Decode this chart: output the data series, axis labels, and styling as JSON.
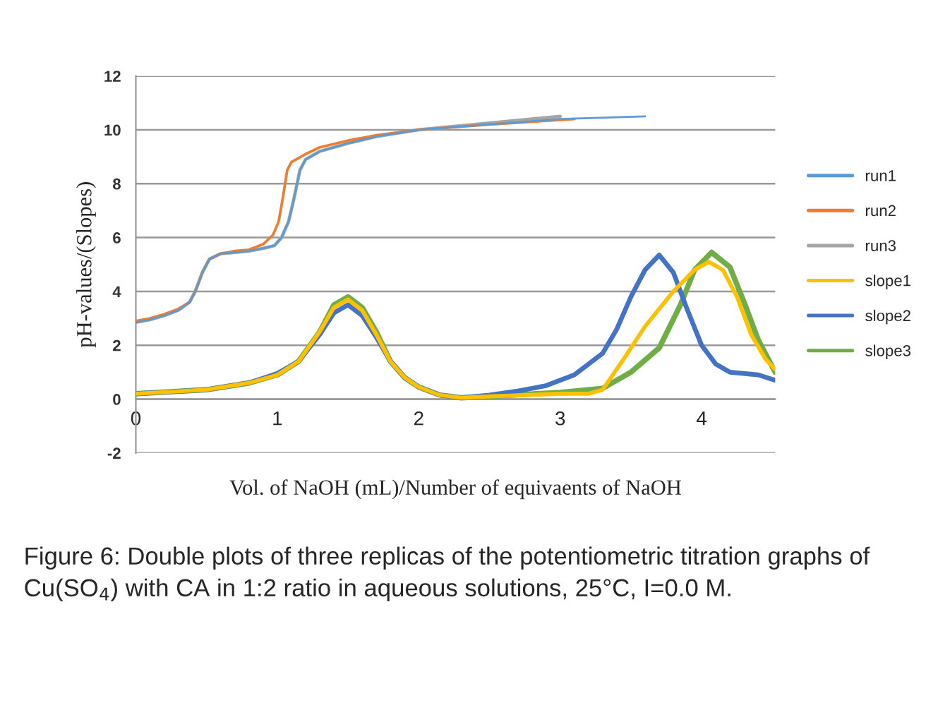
{
  "chart_data": {
    "type": "line",
    "xlabel": "Vol. of NaOH (mL)/Number of equivaents of NaOH",
    "ylabel": "pH-values/(Slopes)",
    "xlim": [
      0,
      4.52
    ],
    "ylim": [
      -2,
      12
    ],
    "xticks": [
      0,
      1,
      2,
      3,
      4
    ],
    "yticks": [
      -2,
      0,
      2,
      4,
      6,
      8,
      10,
      12
    ],
    "grid": "y",
    "legend": "right",
    "marker": "none",
    "line_style": "solid",
    "series": [
      {
        "name": "run1",
        "color": "#5b9bd5",
        "x": [
          0,
          0.1,
          0.2,
          0.3,
          0.38,
          0.42,
          0.47,
          0.52,
          0.6,
          0.7,
          0.8,
          0.9,
          0.98,
          1.03,
          1.08,
          1.12,
          1.16,
          1.2,
          1.3,
          1.5,
          1.7,
          2.0,
          2.5,
          3.0,
          3.6
        ],
        "values": [
          2.85,
          2.95,
          3.1,
          3.3,
          3.6,
          4.0,
          4.7,
          5.2,
          5.4,
          5.45,
          5.5,
          5.6,
          5.7,
          6.0,
          6.6,
          7.5,
          8.5,
          8.9,
          9.2,
          9.5,
          9.75,
          10.0,
          10.2,
          10.4,
          10.5
        ]
      },
      {
        "name": "run2",
        "color": "#ed7d31",
        "x": [
          0,
          0.1,
          0.2,
          0.3,
          0.38,
          0.42,
          0.47,
          0.52,
          0.6,
          0.7,
          0.8,
          0.9,
          0.97,
          1.01,
          1.04,
          1.07,
          1.1,
          1.2,
          1.3,
          1.5,
          1.7,
          2.0,
          2.5,
          3.1
        ],
        "values": [
          2.9,
          3.0,
          3.15,
          3.35,
          3.6,
          4.0,
          4.7,
          5.2,
          5.4,
          5.5,
          5.55,
          5.75,
          6.1,
          6.6,
          7.5,
          8.5,
          8.8,
          9.1,
          9.35,
          9.6,
          9.8,
          10.0,
          10.2,
          10.4
        ]
      },
      {
        "name": "run3",
        "color": "#a5a5a5",
        "x": [
          0,
          0.1,
          0.2,
          0.3,
          0.38,
          0.42,
          0.47,
          0.52,
          0.6,
          0.7,
          0.8,
          0.9,
          0.98,
          1.03,
          1.08,
          1.12,
          1.16,
          1.2,
          1.3,
          1.5,
          1.7,
          2.0,
          2.5,
          3.0
        ],
        "values": [
          2.85,
          2.95,
          3.1,
          3.3,
          3.6,
          4.0,
          4.7,
          5.2,
          5.4,
          5.45,
          5.5,
          5.6,
          5.7,
          6.0,
          6.6,
          7.5,
          8.5,
          8.9,
          9.2,
          9.5,
          9.75,
          10.0,
          10.25,
          10.5
        ]
      },
      {
        "name": "slope1",
        "color": "#ffc000",
        "x": [
          0,
          0.5,
          0.8,
          1.0,
          1.15,
          1.3,
          1.4,
          1.5,
          1.6,
          1.7,
          1.8,
          1.9,
          2.0,
          2.15,
          2.3,
          2.5,
          3.0,
          3.2,
          3.3,
          3.45,
          3.6,
          3.8,
          3.95,
          4.05,
          4.15,
          4.25,
          4.35,
          4.45,
          4.52
        ],
        "values": [
          0.2,
          0.35,
          0.6,
          0.9,
          1.4,
          2.5,
          3.4,
          3.7,
          3.3,
          2.4,
          1.4,
          0.8,
          0.45,
          0.15,
          0.05,
          0.1,
          0.2,
          0.2,
          0.35,
          1.5,
          2.7,
          4.0,
          4.8,
          5.1,
          4.8,
          3.8,
          2.4,
          1.5,
          1.1
        ]
      },
      {
        "name": "slope2",
        "color": "#4472c4",
        "x": [
          0,
          0.5,
          0.8,
          1.0,
          1.15,
          1.3,
          1.4,
          1.5,
          1.6,
          1.7,
          1.8,
          1.9,
          2.0,
          2.15,
          2.3,
          2.5,
          2.7,
          2.9,
          3.1,
          3.3,
          3.4,
          3.5,
          3.6,
          3.7,
          3.8,
          3.9,
          4.0,
          4.1,
          4.2,
          4.4,
          4.52
        ],
        "values": [
          0.2,
          0.35,
          0.6,
          0.95,
          1.4,
          2.4,
          3.2,
          3.5,
          3.1,
          2.3,
          1.4,
          0.8,
          0.45,
          0.15,
          0.05,
          0.15,
          0.3,
          0.5,
          0.9,
          1.7,
          2.6,
          3.8,
          4.8,
          5.35,
          4.7,
          3.3,
          2.0,
          1.3,
          1.0,
          0.9,
          0.7
        ]
      },
      {
        "name": "slope3",
        "color": "#70ad47",
        "x": [
          0,
          0.5,
          0.8,
          1.0,
          1.15,
          1.3,
          1.4,
          1.5,
          1.6,
          1.7,
          1.8,
          1.9,
          2.0,
          2.15,
          2.3,
          2.5,
          3.0,
          3.3,
          3.5,
          3.7,
          3.85,
          3.95,
          4.07,
          4.2,
          4.3,
          4.4,
          4.52
        ],
        "values": [
          0.2,
          0.35,
          0.6,
          0.9,
          1.4,
          2.5,
          3.5,
          3.8,
          3.4,
          2.5,
          1.4,
          0.8,
          0.45,
          0.15,
          0.05,
          0.1,
          0.25,
          0.4,
          1.0,
          1.9,
          3.5,
          4.8,
          5.45,
          4.9,
          3.6,
          2.2,
          1.0
        ]
      }
    ],
    "annotations": [
      "Figure 6: Double plots of three replicas of the potentiometric titration graphs of Cu(SO$_{4}$) with CA in 1:2 ratio in aqueous solutions, 25°C, I=0.0 M."
    ]
  }
}
